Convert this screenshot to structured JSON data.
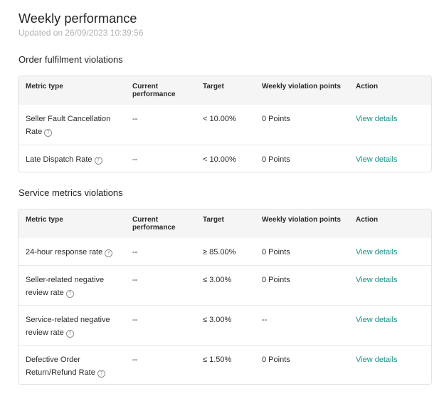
{
  "page": {
    "title": "Weekly performance",
    "updated": "Updated on 26/09/2023 10:39:56"
  },
  "columns": {
    "metric": "Metric type",
    "current": "Current performance",
    "target": "Target",
    "points": "Weekly violation points",
    "action": "Action"
  },
  "sections": [
    {
      "title": "Order fulfilment violations",
      "rows": [
        {
          "metric": "Seller Fault Cancellation Rate",
          "current": "--",
          "target": "< 10.00%",
          "points": "0 Points",
          "action": "View details"
        },
        {
          "metric": "Late Dispatch Rate",
          "current": "--",
          "target": "< 10.00%",
          "points": "0 Points",
          "action": "View details"
        }
      ]
    },
    {
      "title": "Service metrics violations",
      "rows": [
        {
          "metric": "24-hour response rate",
          "current": "--",
          "target": "≥ 85.00%",
          "points": "0 Points",
          "action": "View details"
        },
        {
          "metric": "Seller-related negative review rate",
          "current": "--",
          "target": "≤ 3.00%",
          "points": "0 Points",
          "action": "View details"
        },
        {
          "metric": "Service-related negative review rate",
          "current": "--",
          "target": "≤ 3.00%",
          "points": "--",
          "action": "View details"
        },
        {
          "metric": "Defective Order Return/Refund Rate",
          "current": "--",
          "target": "≤ 1.50%",
          "points": "0 Points",
          "action": "View details"
        }
      ]
    }
  ],
  "icons": {
    "help": "question-circle-icon"
  },
  "colors": {
    "link": "#1b8f86",
    "header_bg": "#f5f5f5",
    "muted": "#b3b3b3"
  }
}
